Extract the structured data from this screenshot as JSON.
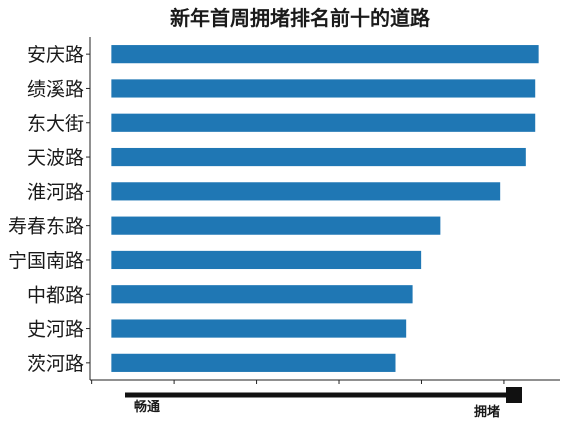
{
  "chart_data": {
    "type": "bar",
    "orientation": "horizontal",
    "title": "新年首周拥堵排名前十的道路",
    "categories": [
      "安庆路",
      "绩溪路",
      "东大街",
      "天波路",
      "淮河路",
      "寿春东路",
      "宁国南路",
      "中都路",
      "史河路",
      "茨河路"
    ],
    "values": [
      1.0,
      0.992,
      0.992,
      0.97,
      0.91,
      0.77,
      0.725,
      0.705,
      0.69,
      0.665
    ],
    "xlim": [
      -0.05,
      1.05
    ],
    "grid": false,
    "bar_color": "#1f77b4",
    "scale_legend": {
      "low_label": "畅通",
      "high_label": "拥堵"
    }
  }
}
